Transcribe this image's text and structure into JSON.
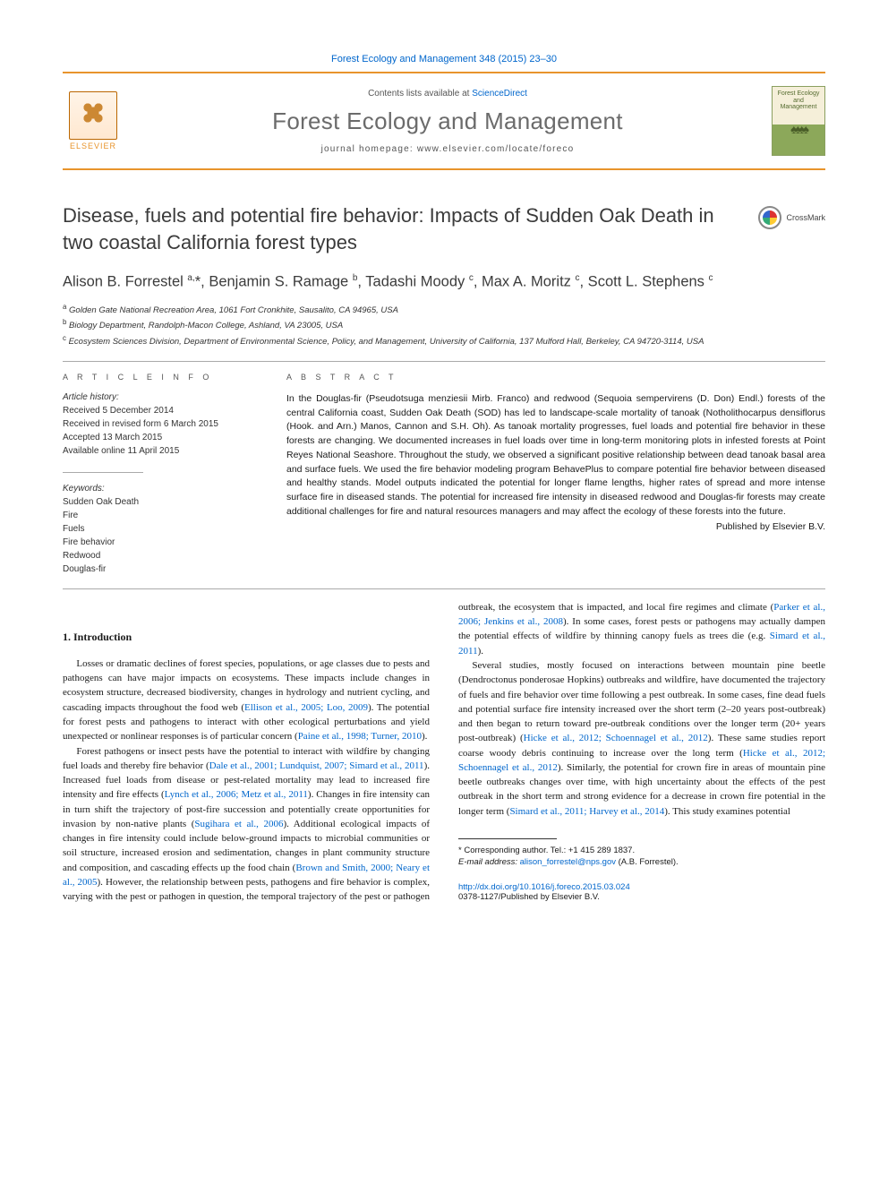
{
  "header_citation": "Forest Ecology and Management 348 (2015) 23–30",
  "masthead": {
    "contents_prefix": "Contents lists available at ",
    "contents_link": "ScienceDirect",
    "journal_title": "Forest Ecology and Management",
    "homepage_prefix": "journal homepage: ",
    "homepage_url": "www.elsevier.com/locate/foreco",
    "publisher_name": "ELSEVIER",
    "cover_title": "Forest Ecology and Management"
  },
  "crossmark_label": "CrossMark",
  "title": "Disease, fuels and potential fire behavior: Impacts of Sudden Oak Death in two coastal California forest types",
  "authors_html": "Alison B. Forrestel <sup>a,</sup>*, Benjamin S. Ramage <sup>b</sup>, Tadashi Moody <sup>c</sup>, Max A. Moritz <sup>c</sup>, Scott L. Stephens <sup>c</sup>",
  "affiliations": [
    {
      "sup": "a",
      "text": "Golden Gate National Recreation Area, 1061 Fort Cronkhite, Sausalito, CA 94965, USA"
    },
    {
      "sup": "b",
      "text": "Biology Department, Randolph-Macon College, Ashland, VA 23005, USA"
    },
    {
      "sup": "c",
      "text": "Ecosystem Sciences Division, Department of Environmental Science, Policy, and Management, University of California, 137 Mulford Hall, Berkeley, CA 94720-3114, USA"
    }
  ],
  "info": {
    "heading": "A R T I C L E   I N F O",
    "history_label": "Article history:",
    "history": [
      "Received 5 December 2014",
      "Received in revised form 6 March 2015",
      "Accepted 13 March 2015",
      "Available online 11 April 2015"
    ],
    "keywords_label": "Keywords:",
    "keywords": [
      "Sudden Oak Death",
      "Fire",
      "Fuels",
      "Fire behavior",
      "Redwood",
      "Douglas-fir"
    ]
  },
  "abstract": {
    "heading": "A B S T R A C T",
    "text": "In the Douglas-fir (Pseudotsuga menziesii Mirb. Franco) and redwood (Sequoia sempervirens (D. Don) Endl.) forests of the central California coast, Sudden Oak Death (SOD) has led to landscape-scale mortality of tanoak (Notholithocarpus densiflorus (Hook. and Arn.) Manos, Cannon and S.H. Oh). As tanoak mortality progresses, fuel loads and potential fire behavior in these forests are changing. We documented increases in fuel loads over time in long-term monitoring plots in infested forests at Point Reyes National Seashore. Throughout the study, we observed a significant positive relationship between dead tanoak basal area and surface fuels. We used the fire behavior modeling program BehavePlus to compare potential fire behavior between diseased and healthy stands. Model outputs indicated the potential for longer flame lengths, higher rates of spread and more intense surface fire in diseased stands. The potential for increased fire intensity in diseased redwood and Douglas-fir forests may create additional challenges for fire and natural resources managers and may affect the ecology of these forests into the future.",
    "copyright": "Published by Elsevier B.V."
  },
  "section1_heading": "1. Introduction",
  "paragraphs": [
    "Losses or dramatic declines of forest species, populations, or age classes due to pests and pathogens can have major impacts on ecosystems. These impacts include changes in ecosystem structure, decreased biodiversity, changes in hydrology and nutrient cycling, and cascading impacts throughout the food web (<a>Ellison et al., 2005; Loo, 2009</a>). The potential for forest pests and pathogens to interact with other ecological perturbations and yield unexpected or nonlinear responses is of particular concern (<a>Paine et al., 1998; Turner, 2010</a>).",
    "Forest pathogens or insect pests have the potential to interact with wildfire by changing fuel loads and thereby fire behavior (<a>Dale et al., 2001; Lundquist, 2007; Simard et al., 2011</a>). Increased fuel loads from disease or pest-related mortality may lead to increased fire intensity and fire effects (<a>Lynch et al., 2006; Metz et al., 2011</a>). Changes in fire intensity can in turn shift the trajectory of post-fire succession and potentially create opportunities for invasion by non-native plants (<a>Sugihara et al., 2006</a>). Additional ecological impacts of changes in fire intensity could include below-ground impacts to microbial communities or soil structure, increased erosion and sedimentation, changes in plant community structure and composition, and cascading effects up the food chain (<a>Brown and Smith, 2000; Neary et al., 2005</a>). However, the relationship between pests, pathogens and fire behavior is complex, varying with the pest or pathogen in question, the temporal trajectory of the pest or pathogen outbreak, the ecosystem that is impacted, and local fire regimes and climate (<a>Parker et al., 2006; Jenkins et al., 2008</a>). In some cases, forest pests or pathogens may actually dampen the potential effects of wildfire by thinning canopy fuels as trees die (e.g. <a>Simard et al., 2011</a>).",
    "Several studies, mostly focused on interactions between mountain pine beetle (Dendroctonus ponderosae Hopkins) outbreaks and wildfire, have documented the trajectory of fuels and fire behavior over time following a pest outbreak. In some cases, fine dead fuels and potential surface fire intensity increased over the short term (2–20 years post-outbreak) and then began to return toward pre-outbreak conditions over the longer term (20+ years post-outbreak) (<a>Hicke et al., 2012; Schoennagel et al., 2012</a>). These same studies report coarse woody debris continuing to increase over the long term (<a>Hicke et al., 2012; Schoennagel et al., 2012</a>). Similarly, the potential for crown fire in areas of mountain pine beetle outbreaks changes over time, with high uncertainty about the effects of the pest outbreak in the short term and strong evidence for a decrease in crown fire potential in the longer term (<a>Simard et al., 2011; Harvey et al., 2014</a>). This study examines potential"
  ],
  "corresponding": {
    "label": "* Corresponding author. Tel.: +1 415 289 1837.",
    "email_label": "E-mail address:",
    "email": "alison_forrestel@nps.gov",
    "email_suffix": "(A.B. Forrestel)."
  },
  "doi": {
    "url": "http://dx.doi.org/10.1016/j.foreco.2015.03.024",
    "issn_line": "0378-1127/Published by Elsevier B.V."
  },
  "colors": {
    "accent": "#e8942c",
    "link": "#0066cc",
    "text_muted": "#6b6b6b"
  }
}
